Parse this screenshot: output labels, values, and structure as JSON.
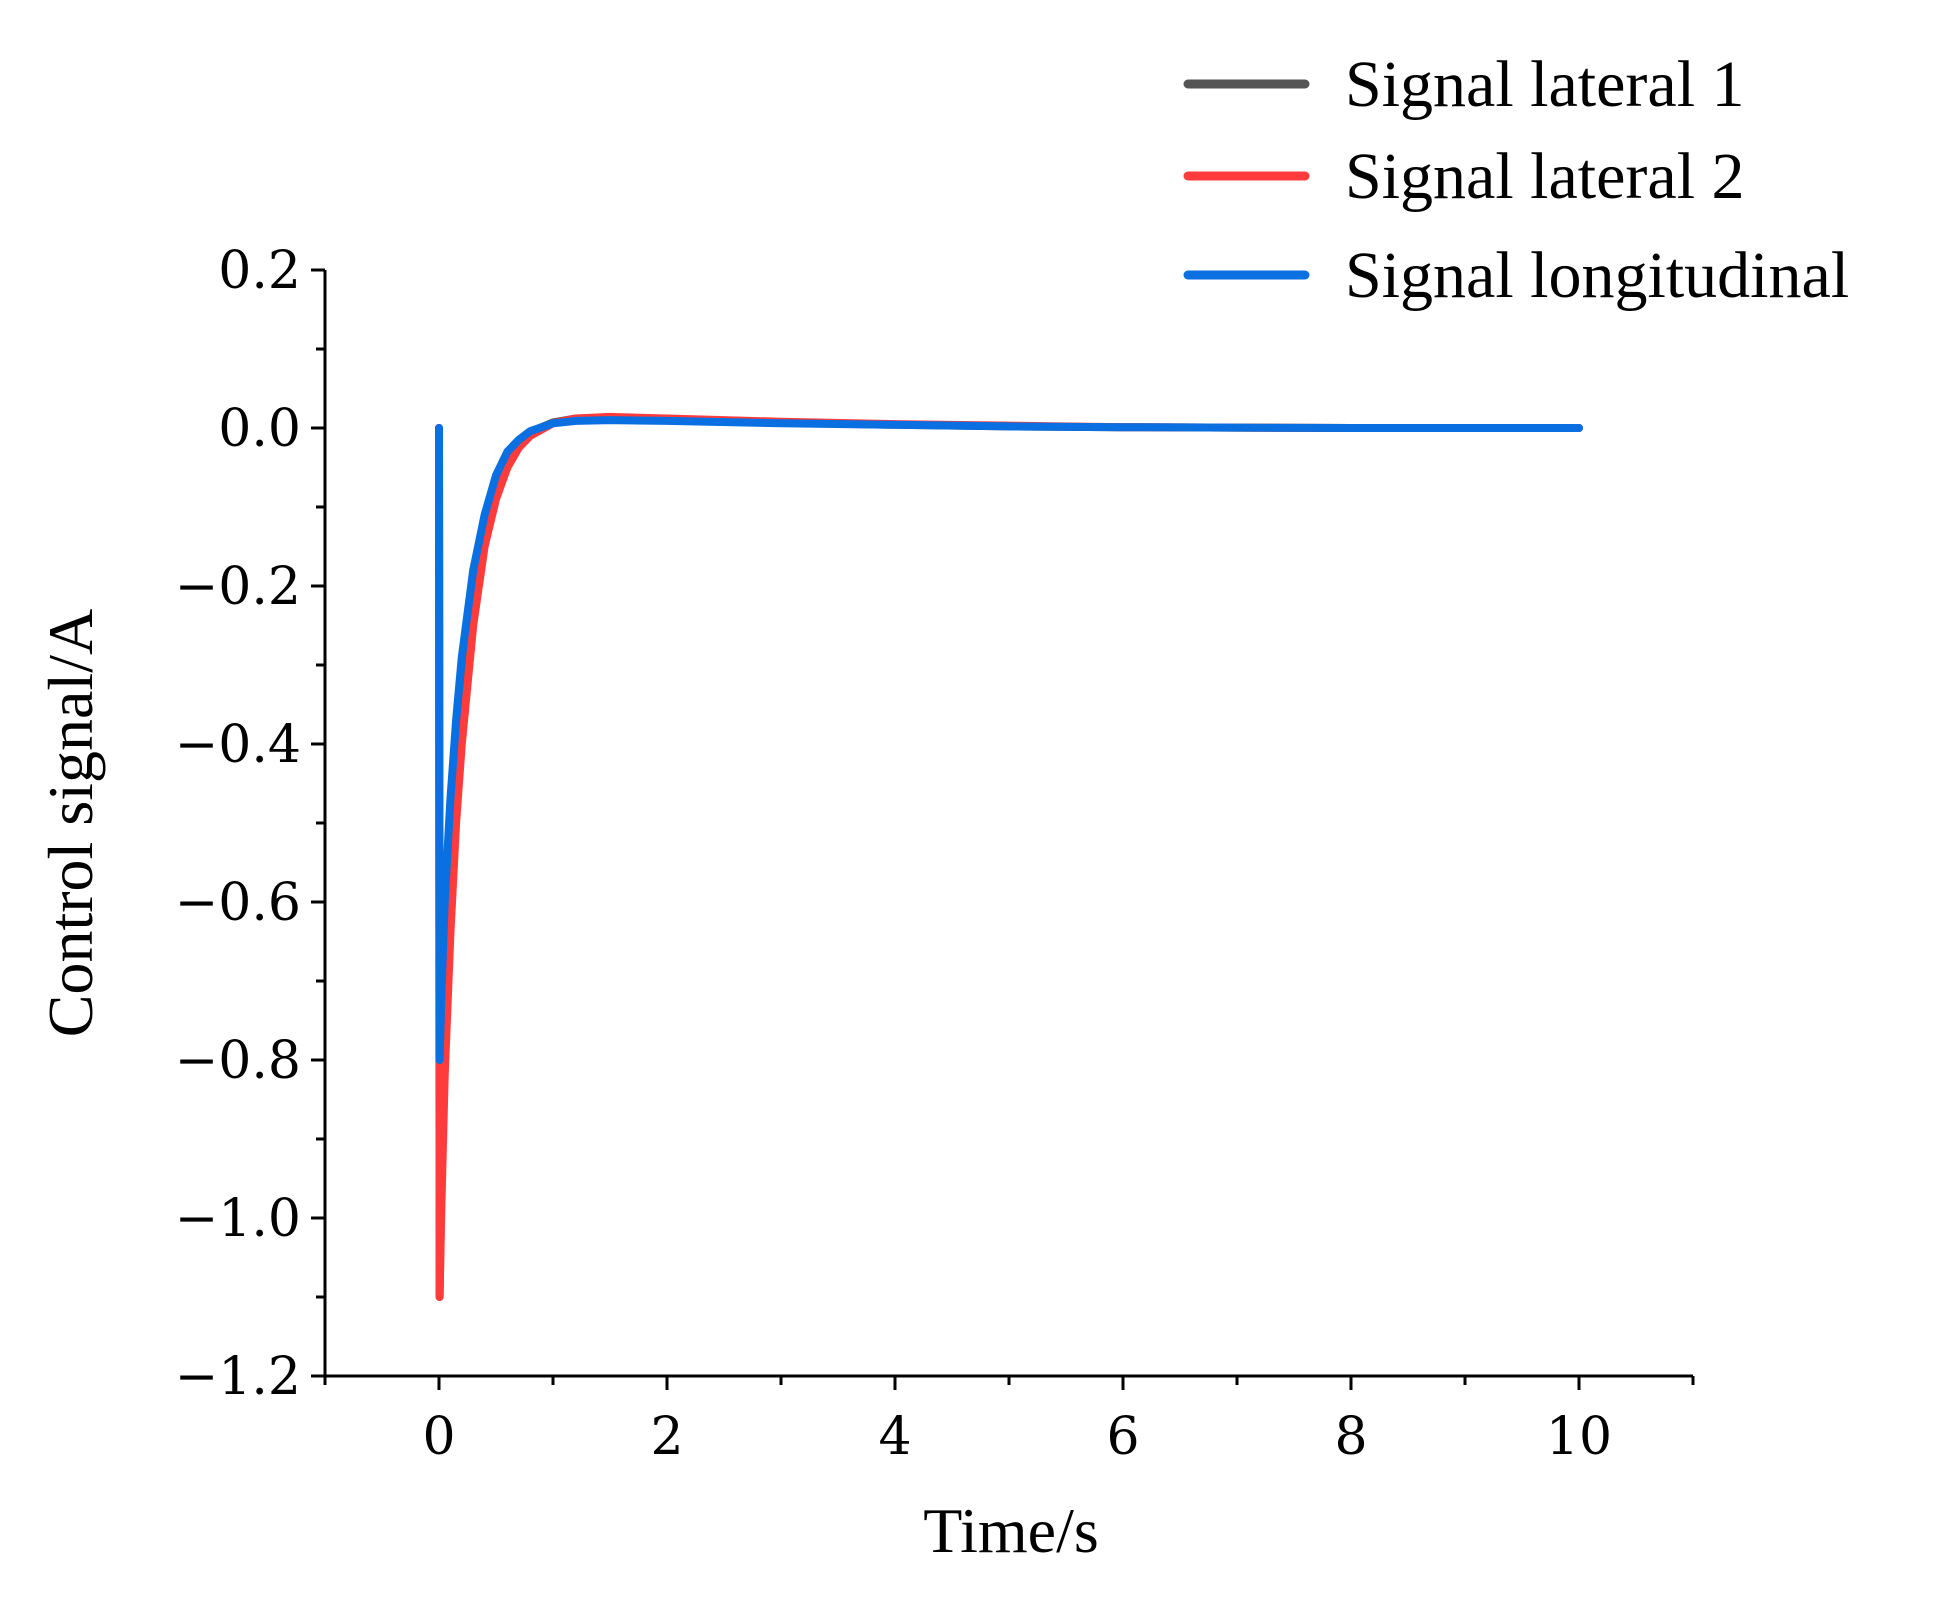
{
  "chart_data": {
    "type": "line",
    "title": "",
    "xlabel": "Time/s",
    "ylabel": "Control signal/A",
    "xlim": [
      -1,
      11
    ],
    "ylim": [
      -1.2,
      0.2
    ],
    "xticks": [
      0,
      2,
      4,
      6,
      8,
      10
    ],
    "xtick_labels": [
      "0",
      "2",
      "4",
      "6",
      "8",
      "10"
    ],
    "yticks": [
      0.2,
      0.0,
      -0.2,
      -0.4,
      -0.6,
      -0.8,
      -1.0,
      -1.2
    ],
    "ytick_labels": [
      "0.2",
      "0.0",
      "−0.2",
      "−0.4",
      "−0.6",
      "−0.8",
      "−1.0",
      "−1.2"
    ],
    "grid": false,
    "legend_position": "top-right",
    "series": [
      {
        "name": "Signal lateral 1",
        "color": "#555555",
        "x": [
          0,
          0.005,
          0.02,
          0.05,
          0.1,
          0.15,
          0.2,
          0.3,
          0.4,
          0.5,
          0.6,
          0.7,
          0.8,
          1.0,
          1.2,
          1.5,
          2,
          3,
          4,
          5,
          6,
          8,
          10
        ],
        "y": [
          0,
          -1.1,
          -0.97,
          -0.79,
          -0.6,
          -0.46,
          -0.36,
          -0.22,
          -0.13,
          -0.075,
          -0.04,
          -0.02,
          -0.005,
          0.007,
          0.012,
          0.013,
          0.011,
          0.007,
          0.004,
          0.002,
          0.001,
          0.0,
          0.0
        ]
      },
      {
        "name": "Signal lateral 2",
        "color": "#ff3b3b",
        "x": [
          0,
          0.005,
          0.02,
          0.05,
          0.1,
          0.15,
          0.2,
          0.3,
          0.4,
          0.5,
          0.6,
          0.7,
          0.8,
          1.0,
          1.2,
          1.5,
          2,
          3,
          4,
          5,
          6,
          8,
          10
        ],
        "y": [
          0,
          -1.1,
          -0.99,
          -0.82,
          -0.64,
          -0.5,
          -0.4,
          -0.25,
          -0.15,
          -0.09,
          -0.05,
          -0.025,
          -0.01,
          0.006,
          0.012,
          0.014,
          0.012,
          0.008,
          0.005,
          0.003,
          0.001,
          0.0,
          0.0
        ]
      },
      {
        "name": "Signal longitudinal",
        "color": "#0a6fe0",
        "x": [
          0,
          0.005,
          0.02,
          0.05,
          0.1,
          0.15,
          0.2,
          0.3,
          0.4,
          0.5,
          0.6,
          0.7,
          0.8,
          1.0,
          1.2,
          1.5,
          2,
          3,
          4,
          5,
          6,
          8,
          10
        ],
        "y": [
          0,
          -0.8,
          -0.72,
          -0.6,
          -0.47,
          -0.37,
          -0.29,
          -0.18,
          -0.11,
          -0.06,
          -0.03,
          -0.015,
          -0.004,
          0.006,
          0.009,
          0.01,
          0.009,
          0.006,
          0.004,
          0.002,
          0.001,
          0.0,
          0.0
        ]
      }
    ]
  }
}
